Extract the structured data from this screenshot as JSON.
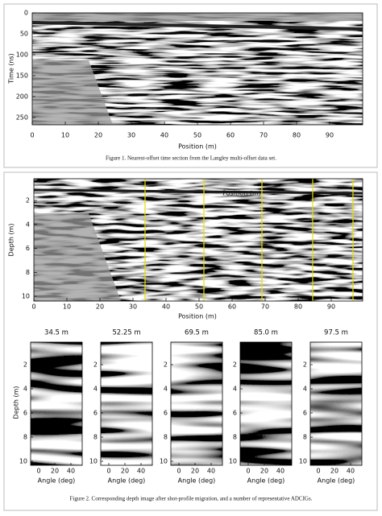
{
  "figure1": {
    "y_label": "Time (ns)",
    "x_label": "Position (m)",
    "yticks": [
      0,
      50,
      100,
      150,
      200,
      250
    ],
    "xticks": [
      0,
      10,
      20,
      30,
      40,
      50,
      60,
      70,
      80,
      90
    ],
    "caption": "Figure 1.   Nearest-offset time section from the Langley multi-offset data set."
  },
  "figure2": {
    "y_label": "Depth (m)",
    "x_label_top": "Position (m)",
    "x_label": "Position (m)",
    "yticks": [
      2,
      4,
      6,
      8,
      10
    ],
    "xticks": [
      0,
      10,
      20,
      30,
      40,
      50,
      60,
      70,
      80,
      90
    ],
    "panels": [
      {
        "title": "34.5 m"
      },
      {
        "title": "52.25 m"
      },
      {
        "title": "69.5 m"
      },
      {
        "title": "85.0 m"
      },
      {
        "title": "97.5 m"
      }
    ],
    "panel_y_label": "Depth (m)",
    "panel_x_label": "Angle (deg)",
    "panel_yticks": [
      2,
      4,
      6,
      8,
      10
    ],
    "panel_xticks": [
      0,
      20,
      40
    ],
    "caption": "Figure 2.   Corresponding depth image after shot-profile migration, and a number of representative ADCIGs."
  }
}
